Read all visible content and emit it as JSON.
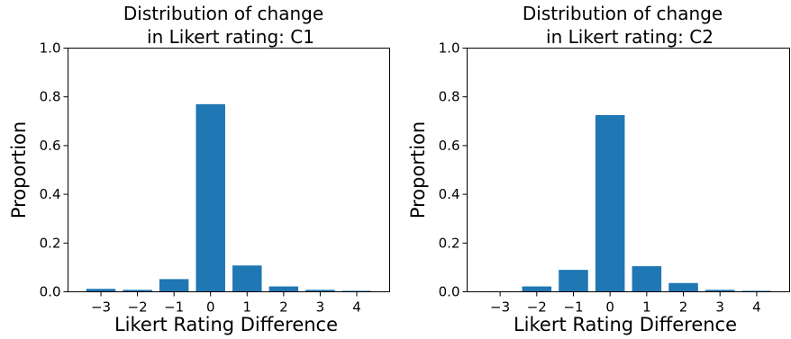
{
  "chart_data": [
    {
      "type": "bar",
      "title_lines": [
        "Distribution of change",
        "in Likert rating: C1"
      ],
      "xlabel": "Likert Rating Difference",
      "ylabel": "Proportion",
      "categories": [
        "−3",
        "−2",
        "−1",
        "0",
        "1",
        "2",
        "3",
        "4"
      ],
      "values": [
        0.012,
        0.008,
        0.052,
        0.77,
        0.108,
        0.022,
        0.008,
        0.004
      ],
      "ylim": [
        0,
        1.0
      ],
      "yticks": [
        "0.0",
        "0.2",
        "0.4",
        "0.6",
        "0.8",
        "1.0"
      ],
      "color": "#1f77b4",
      "grid": false
    },
    {
      "type": "bar",
      "title_lines": [
        "Distribution of change",
        "in Likert rating: C2"
      ],
      "xlabel": "Likert Rating Difference",
      "ylabel": "Proportion",
      "categories": [
        "−3",
        "−2",
        "−1",
        "0",
        "1",
        "2",
        "3",
        "4"
      ],
      "values": [
        0.002,
        0.022,
        0.09,
        0.725,
        0.105,
        0.036,
        0.008,
        0.004
      ],
      "ylim": [
        0,
        1.0
      ],
      "yticks": [
        "0.0",
        "0.2",
        "0.4",
        "0.6",
        "0.8",
        "1.0"
      ],
      "color": "#1f77b4",
      "grid": false
    }
  ]
}
